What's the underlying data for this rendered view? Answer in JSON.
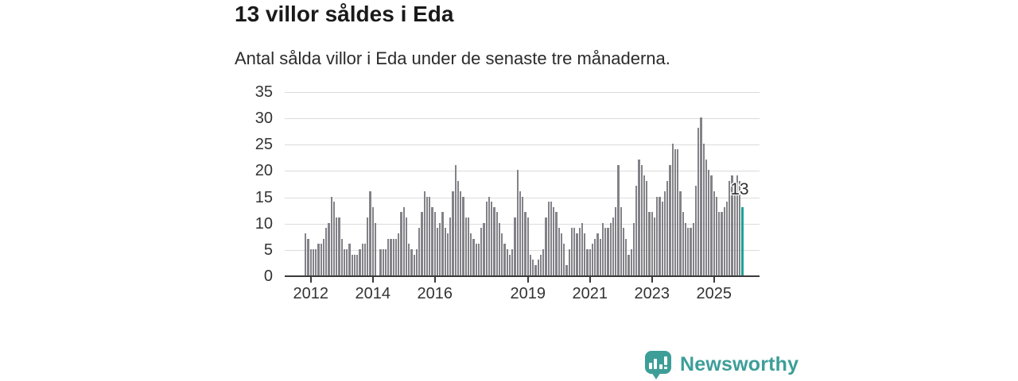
{
  "header": {
    "title": "13 villor såldes i Eda",
    "subtitle": "Antal sålda villor i Eda under de senaste tre månaderna."
  },
  "chart_data": {
    "type": "bar",
    "title": "13 villor såldes i Eda",
    "subtitle": "Antal sålda villor i Eda under de senaste tre månaderna.",
    "xlabel": "",
    "ylabel": "",
    "ylim": [
      0,
      35
    ],
    "yticks": [
      0,
      5,
      10,
      15,
      20,
      25,
      30,
      35
    ],
    "grid": true,
    "legend": "none",
    "frequency": "monthly",
    "start_month": "2011-11",
    "values": [
      8,
      7,
      5,
      5,
      5,
      6,
      6,
      7,
      9,
      10,
      15,
      14,
      11,
      11,
      7,
      5,
      5,
      6,
      4,
      4,
      4,
      5,
      6,
      6,
      11,
      16,
      13,
      10,
      0,
      5,
      5,
      5,
      7,
      7,
      7,
      7,
      8,
      12,
      13,
      11,
      6,
      5,
      4,
      5,
      9,
      12,
      16,
      15,
      15,
      13,
      12,
      9,
      10,
      12,
      9,
      8,
      11,
      16,
      21,
      18,
      16,
      15,
      11,
      11,
      8,
      7,
      6,
      6,
      9,
      10,
      14,
      15,
      14,
      13,
      12,
      10,
      8,
      6,
      5,
      4,
      5,
      11,
      20,
      16,
      15,
      12,
      11,
      4,
      3,
      2,
      3,
      4,
      5,
      11,
      14,
      14,
      13,
      12,
      9,
      8,
      6,
      2,
      5,
      9,
      9,
      8,
      9,
      10,
      8,
      5,
      5,
      6,
      7,
      8,
      7,
      10,
      9,
      9,
      10,
      11,
      13,
      21,
      13,
      9,
      7,
      4,
      5,
      10,
      17,
      22,
      21,
      19,
      18,
      12,
      12,
      11,
      15,
      15,
      14,
      16,
      18,
      21,
      25,
      24,
      24,
      16,
      12,
      10,
      9,
      9,
      10,
      17,
      28,
      30,
      25,
      22,
      20,
      19,
      16,
      15,
      12,
      12,
      13,
      14,
      18,
      19,
      17,
      19,
      18,
      13
    ],
    "year_ticks": [
      {
        "label": "2012",
        "index": 2
      },
      {
        "label": "2014",
        "index": 26
      },
      {
        "label": "2016",
        "index": 50
      },
      {
        "label": "2019",
        "index": 86
      },
      {
        "label": "2021",
        "index": 110
      },
      {
        "label": "2023",
        "index": 134
      },
      {
        "label": "2025",
        "index": 158
      }
    ],
    "highlight": {
      "index": 169,
      "value": 13,
      "label": "13",
      "color": "#1ba29a"
    },
    "bar_color": "#838288",
    "grid_color": "#dbdbdb",
    "axis_color": "#3a3a3a"
  },
  "branding": {
    "logo_text": "Newsworthy",
    "logo_color": "#3d9e98",
    "logo_icon": "speech-bubble-bar-chart"
  }
}
